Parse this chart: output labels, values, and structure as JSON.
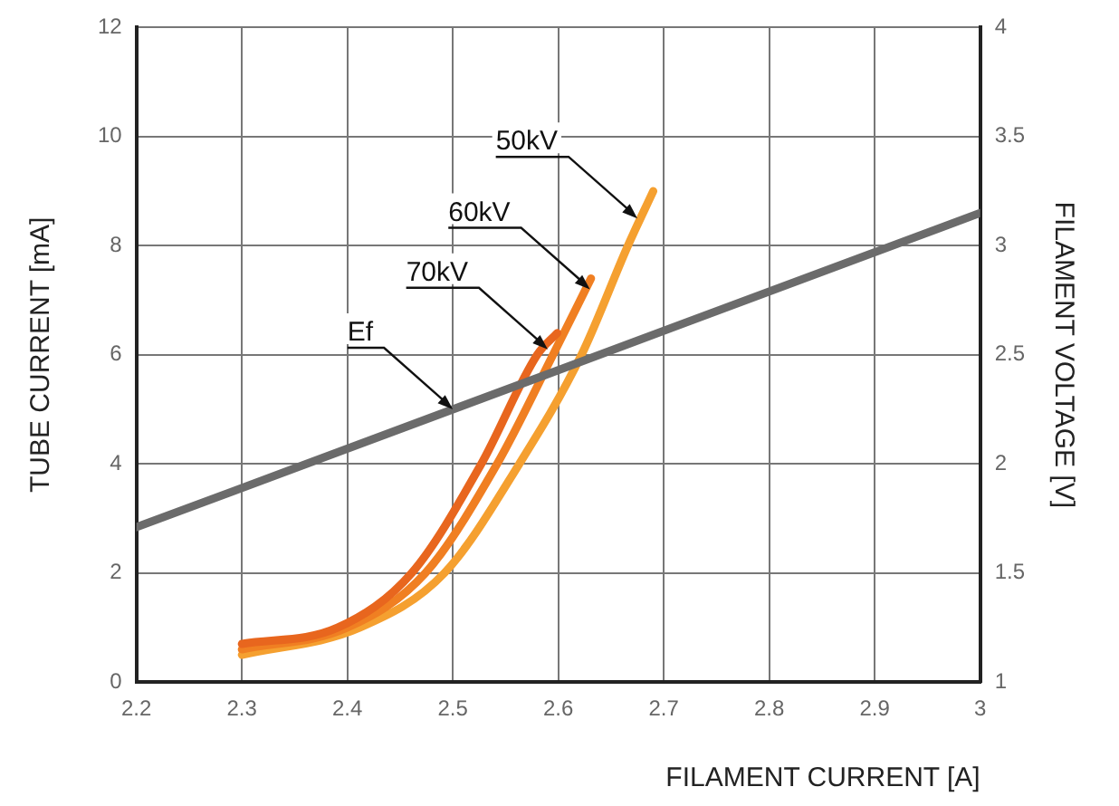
{
  "chart_data": {
    "type": "line",
    "xlabel": "FILAMENT CURRENT [A]",
    "ylabel": "TUBE CURRENT [mA]",
    "y2label": "FILAMENT VOLTAGE [V]",
    "xlim": [
      2.2,
      3
    ],
    "xticks": [
      2.2,
      2.3,
      2.4,
      2.5,
      2.6,
      2.7,
      2.8,
      2.9,
      3
    ],
    "ylim": [
      0,
      12
    ],
    "yticks": [
      0,
      2,
      4,
      6,
      8,
      10,
      12
    ],
    "y2lim": [
      1,
      4
    ],
    "y2ticks": [
      1,
      1.5,
      2,
      2.5,
      3,
      3.5,
      4
    ],
    "grid": true,
    "legend": false,
    "marker": "none",
    "line_style": "solid",
    "series": [
      {
        "color": "#6b6b6b",
        "axis": "y2",
        "x": [
          2.2,
          3
        ],
        "values": [
          1.71,
          3.15
        ]
      },
      {
        "color": "#e8661e",
        "x": [
          2.3,
          2.391,
          2.461,
          2.527,
          2.58,
          2.599
        ],
        "values": [
          0.7,
          1,
          2,
          4,
          6,
          6.4
        ]
      },
      {
        "color": "#f07f22",
        "x": [
          2.3,
          2.4,
          2.474,
          2.542,
          2.595,
          2.631
        ],
        "values": [
          0.6,
          1,
          2,
          4,
          6,
          7.4
        ]
      },
      {
        "color": "#f5a030",
        "x": [
          2.3,
          2.412,
          2.492,
          2.563,
          2.622,
          2.666,
          2.69
        ],
        "values": [
          0.5,
          1,
          2,
          4,
          6,
          8,
          9
        ]
      }
    ],
    "annotations": [
      {
        "text": "Ef",
        "x": 2.5,
        "y": 5.0
      },
      {
        "text": "70kV",
        "x": 2.59,
        "y": 6.1
      },
      {
        "text": "60kV",
        "x": 2.63,
        "y": 7.2
      },
      {
        "text": "50kV",
        "x": 2.675,
        "y": 8.5
      }
    ]
  }
}
